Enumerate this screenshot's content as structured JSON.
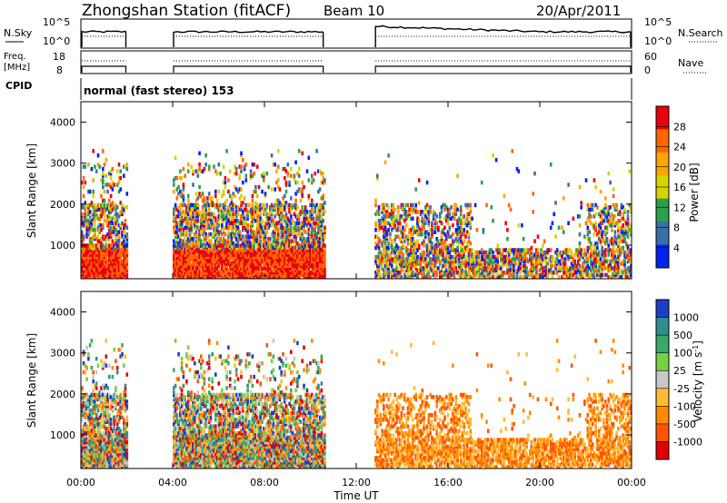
{
  "header": {
    "station": "Zhongshan Station (fitACF)",
    "beam": "Beam 10",
    "date": "20/Apr/2011"
  },
  "strips": {
    "nsky_label": "N.Sky",
    "nsky_ticks": [
      "10^5",
      "10^0"
    ],
    "nsearch_label": "N.Search",
    "nsearch_ticks": [
      "10^5",
      "10^0"
    ],
    "freq_label_1": "Freq.",
    "freq_label_2": "[MHz]",
    "freq_ticks": [
      "18",
      "8"
    ],
    "nave_label": "Nave",
    "nave_ticks": [
      "60",
      "0"
    ],
    "cpid_label": "CPID",
    "cpid_text": "normal (fast stereo) 153"
  },
  "chart_data": [
    {
      "type": "heatmap",
      "name": "power",
      "ylabel": "Slant Range [km]",
      "xlabel": "",
      "yticks": [
        1000,
        2000,
        3000,
        4000
      ],
      "ylim": [
        180,
        4500
      ],
      "xlim_hours": [
        0,
        24
      ],
      "colorbar": {
        "label": "Power [dB]",
        "ticks": [
          "28",
          "24",
          "20",
          "16",
          "12",
          "8",
          "4"
        ],
        "colors": [
          "#e8000b",
          "#ff6600",
          "#ffa500",
          "#d4d400",
          "#2aa04a",
          "#3b6ea8",
          "#0022ee"
        ]
      },
      "data_intervals_hours": [
        [
          0,
          2
        ],
        [
          4,
          10.6
        ],
        [
          12.8,
          24
        ]
      ]
    },
    {
      "type": "heatmap",
      "name": "velocity",
      "ylabel": "Slant Range [km]",
      "xlabel": "Time UT",
      "yticks": [
        1000,
        2000,
        3000,
        4000
      ],
      "ylim": [
        180,
        4500
      ],
      "xlim_hours": [
        0,
        24
      ],
      "xticks": [
        "00:00",
        "04:00",
        "08:00",
        "12:00",
        "16:00",
        "20:00",
        "00:00"
      ],
      "colorbar": {
        "label": "Velocity [m s",
        "label_sup": "-1",
        "label_end": "]",
        "ticks": [
          "1000",
          "500",
          "100",
          "25",
          "-25",
          "-100",
          "-500",
          "-1000"
        ],
        "colors": [
          "#1d3fc8",
          "#2f8f8f",
          "#3aa86a",
          "#77d040",
          "#c8c8c8",
          "#ffbb33",
          "#ff8c00",
          "#ff5500",
          "#e00000"
        ]
      },
      "data_intervals_hours": [
        [
          0,
          2
        ],
        [
          4,
          10.6
        ],
        [
          12.8,
          24
        ]
      ]
    }
  ]
}
